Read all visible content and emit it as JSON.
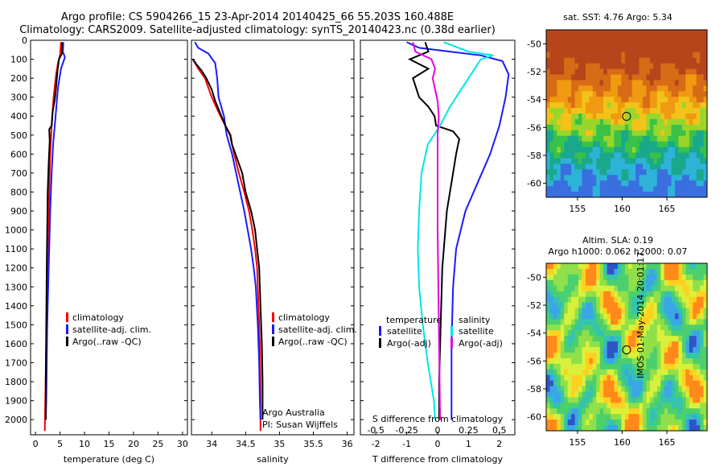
{
  "header": {
    "line1": "Argo profile: CS 5904266_15 23-Apr-2014 20140425_66 55.203S 160.488E",
    "line2": "Climatology: CARS2009. Satellite-adjusted climatology: synTS_20140423.nc (0.38d earlier)"
  },
  "colors": {
    "climatology": "#ff0000",
    "satellite": "#1a1aff",
    "argo": "#000000",
    "satellite_s": "#00e6e6",
    "argo_s": "#e600e6"
  },
  "chart_data": [
    {
      "id": "temperature",
      "type": "line",
      "xlabel": "temperature (deg C)",
      "ylabel": "",
      "xlim": [
        -1,
        31
      ],
      "ylim": [
        2080,
        0
      ],
      "xticks": [
        0,
        5,
        10,
        15,
        20,
        25,
        30
      ],
      "yticks": [
        0,
        100,
        200,
        300,
        400,
        500,
        600,
        700,
        800,
        900,
        1000,
        1100,
        1200,
        1300,
        1400,
        1500,
        1600,
        1700,
        1800,
        1900,
        2000
      ],
      "legend": [
        "climatology",
        "satellite-adj. clim.",
        "Argo(..raw -QC)"
      ],
      "series": [
        {
          "name": "climatology",
          "color": "#ff0000",
          "points": [
            [
              5.2,
              10
            ],
            [
              5.0,
              80
            ],
            [
              4.6,
              120
            ],
            [
              4.2,
              180
            ],
            [
              3.7,
              300
            ],
            [
              3.3,
              450
            ],
            [
              3.0,
              600
            ],
            [
              2.8,
              800
            ],
            [
              2.6,
              1000
            ],
            [
              2.4,
              1300
            ],
            [
              2.2,
              1600
            ],
            [
              2.0,
              1900
            ],
            [
              1.9,
              2060
            ]
          ]
        },
        {
          "name": "satellite-adj. clim.",
          "color": "#1a1aff",
          "points": [
            [
              5.7,
              10
            ],
            [
              5.6,
              60
            ],
            [
              6.0,
              90
            ],
            [
              5.2,
              150
            ],
            [
              4.6,
              250
            ],
            [
              4.1,
              400
            ],
            [
              3.6,
              550
            ],
            [
              3.3,
              700
            ],
            [
              3.0,
              900
            ],
            [
              2.8,
              1100
            ],
            [
              2.6,
              1300
            ],
            [
              2.4,
              1500
            ],
            [
              2.3,
              1700
            ],
            [
              2.2,
              1900
            ],
            [
              2.1,
              2000
            ]
          ]
        },
        {
          "name": "Argo(..raw -QC)",
          "color": "#000000",
          "points": [
            [
              5.4,
              10
            ],
            [
              5.4,
              70
            ],
            [
              4.8,
              100
            ],
            [
              4.5,
              160
            ],
            [
              4.3,
              220
            ],
            [
              4.0,
              300
            ],
            [
              3.5,
              380
            ],
            [
              3.3,
              450
            ],
            [
              2.8,
              470
            ],
            [
              2.9,
              530
            ],
            [
              2.7,
              650
            ],
            [
              2.5,
              800
            ],
            [
              2.4,
              1000
            ],
            [
              2.3,
              1200
            ],
            [
              2.2,
              1500
            ],
            [
              2.1,
              1800
            ],
            [
              2.1,
              2000
            ]
          ]
        }
      ]
    },
    {
      "id": "salinity",
      "type": "line",
      "xlabel": "salinity",
      "ylabel": "",
      "xlim": [
        33.7,
        36.1
      ],
      "ylim": [
        2080,
        0
      ],
      "xticks": [
        34,
        34.5,
        35,
        35.5,
        36
      ],
      "yticks": [
        0,
        100,
        200,
        300,
        400,
        500,
        600,
        700,
        800,
        900,
        1000,
        1100,
        1200,
        1300,
        1400,
        1500,
        1600,
        1700,
        1800,
        1900,
        2000
      ],
      "legend": [
        "climatology",
        "satellite-adj. clim.",
        "Argo(..raw -QC)"
      ],
      "annotations": [
        "Argo Australia",
        "PI: Susan Wijffels"
      ],
      "series": [
        {
          "name": "climatology",
          "color": "#ff0000",
          "points": [
            [
              33.72,
              100
            ],
            [
              33.8,
              150
            ],
            [
              33.9,
              200
            ],
            [
              34.0,
              300
            ],
            [
              34.1,
              380
            ],
            [
              34.2,
              450
            ],
            [
              34.28,
              500
            ],
            [
              34.3,
              550
            ],
            [
              34.33,
              600
            ],
            [
              34.4,
              700
            ],
            [
              34.48,
              800
            ],
            [
              34.55,
              900
            ],
            [
              34.6,
              1000
            ],
            [
              34.64,
              1100
            ],
            [
              34.67,
              1200
            ],
            [
              34.69,
              1400
            ],
            [
              34.71,
              1600
            ],
            [
              34.72,
              1800
            ],
            [
              34.72,
              2060
            ]
          ]
        },
        {
          "name": "satellite-adj. clim.",
          "color": "#1a1aff",
          "points": [
            [
              33.75,
              10
            ],
            [
              33.8,
              40
            ],
            [
              33.95,
              70
            ],
            [
              34.05,
              120
            ],
            [
              34.08,
              200
            ],
            [
              34.1,
              300
            ],
            [
              34.18,
              400
            ],
            [
              34.22,
              500
            ],
            [
              34.3,
              600
            ],
            [
              34.36,
              700
            ],
            [
              34.42,
              800
            ],
            [
              34.48,
              900
            ],
            [
              34.53,
              1000
            ],
            [
              34.58,
              1100
            ],
            [
              34.62,
              1200
            ],
            [
              34.65,
              1300
            ],
            [
              34.68,
              1500
            ],
            [
              34.7,
              1700
            ],
            [
              34.71,
              1900
            ],
            [
              34.72,
              2000
            ]
          ]
        },
        {
          "name": "Argo(..raw -QC)",
          "color": "#000000",
          "points": [
            [
              33.72,
              100
            ],
            [
              33.78,
              130
            ],
            [
              33.85,
              160
            ],
            [
              33.92,
              200
            ],
            [
              34.0,
              260
            ],
            [
              34.05,
              320
            ],
            [
              34.12,
              380
            ],
            [
              34.2,
              450
            ],
            [
              34.27,
              500
            ],
            [
              34.3,
              550
            ],
            [
              34.35,
              600
            ],
            [
              34.4,
              650
            ],
            [
              34.45,
              700
            ],
            [
              34.5,
              800
            ],
            [
              34.58,
              900
            ],
            [
              34.64,
              1000
            ],
            [
              34.67,
              1100
            ],
            [
              34.7,
              1200
            ],
            [
              34.72,
              1400
            ],
            [
              34.74,
              1600
            ],
            [
              34.75,
              1800
            ],
            [
              34.75,
              2000
            ]
          ]
        }
      ]
    },
    {
      "id": "difference",
      "type": "line",
      "xlabel": "T difference from climatology",
      "x2label": "S difference from climatology",
      "xlim": [
        -2.5,
        2.5
      ],
      "x2lim": [
        -0.625,
        0.625
      ],
      "ylim": [
        2080,
        0
      ],
      "xticks": [
        -2,
        -1,
        0,
        1,
        2
      ],
      "x2ticks": [
        -0.5,
        -0.25,
        0,
        0.25,
        0.5
      ],
      "x2ticklabels": [
        "-0.5",
        "-0.25",
        "0",
        "0.25",
        "0.5"
      ],
      "yticks": [
        0,
        100,
        200,
        300,
        400,
        500,
        600,
        700,
        800,
        900,
        1000,
        1100,
        1200,
        1300,
        1400,
        1500,
        1600,
        1700,
        1800,
        1900,
        2000
      ],
      "legend_heads": [
        "temperature",
        "salinity"
      ],
      "legend": [
        "satellite",
        "Argo(-adj)",
        "satellite",
        "Argo(-adj)"
      ],
      "series": [
        {
          "name": "T satellite",
          "axis": "T",
          "color": "#1a1aff",
          "points": [
            [
              -1.0,
              10
            ],
            [
              -0.6,
              40
            ],
            [
              0.4,
              60
            ],
            [
              1.4,
              80
            ],
            [
              2.1,
              110
            ],
            [
              2.3,
              180
            ],
            [
              2.2,
              300
            ],
            [
              2.0,
              450
            ],
            [
              1.7,
              600
            ],
            [
              1.3,
              750
            ],
            [
              0.9,
              900
            ],
            [
              0.6,
              1100
            ],
            [
              0.5,
              1300
            ],
            [
              0.45,
              1600
            ],
            [
              0.45,
              1900
            ],
            [
              0.45,
              2000
            ]
          ]
        },
        {
          "name": "T Argo(-adj)",
          "axis": "T",
          "color": "#000000",
          "points": [
            [
              -0.4,
              10
            ],
            [
              -0.3,
              60
            ],
            [
              -0.9,
              100
            ],
            [
              -0.3,
              150
            ],
            [
              -0.8,
              200
            ],
            [
              -0.6,
              300
            ],
            [
              -0.3,
              350
            ],
            [
              -0.1,
              400
            ],
            [
              -0.05,
              450
            ],
            [
              0.5,
              480
            ],
            [
              0.7,
              520
            ],
            [
              0.6,
              600
            ],
            [
              0.5,
              700
            ],
            [
              0.3,
              900
            ],
            [
              0.15,
              1200
            ],
            [
              0.1,
              1500
            ],
            [
              0.05,
              1800
            ],
            [
              0.05,
              2000
            ]
          ]
        },
        {
          "name": "S satellite",
          "axis": "S",
          "color": "#00e6e6",
          "points": [
            [
              0.05,
              10
            ],
            [
              0.25,
              60
            ],
            [
              0.45,
              80
            ],
            [
              0.35,
              100
            ],
            [
              0.3,
              150
            ],
            [
              0.2,
              250
            ],
            [
              0.1,
              350
            ],
            [
              0.02,
              450
            ],
            [
              -0.08,
              550
            ],
            [
              -0.13,
              700
            ],
            [
              -0.15,
              900
            ],
            [
              -0.16,
              1100
            ],
            [
              -0.15,
              1300
            ],
            [
              -0.12,
              1500
            ],
            [
              -0.08,
              1700
            ],
            [
              -0.03,
              1900
            ],
            [
              -0.02,
              2000
            ]
          ]
        },
        {
          "name": "S Argo(-adj)",
          "axis": "S",
          "color": "#e600e6",
          "points": [
            [
              -0.2,
              10
            ],
            [
              -0.18,
              60
            ],
            [
              -0.05,
              100
            ],
            [
              -0.02,
              150
            ],
            [
              -0.04,
              200
            ],
            [
              -0.02,
              260
            ],
            [
              0.0,
              320
            ],
            [
              0.01,
              400
            ],
            [
              0.0,
              500
            ],
            [
              0.0,
              700
            ],
            [
              0.0,
              1000
            ],
            [
              0.01,
              1500
            ],
            [
              0.02,
              2000
            ]
          ]
        }
      ]
    },
    {
      "id": "sst_map",
      "type": "heatmap",
      "title": "sat. SST: 4.76 Argo: 5.34",
      "xlim": [
        151.5,
        169.5
      ],
      "ylim": [
        -61,
        -49
      ],
      "xticks": [
        155,
        160,
        165
      ],
      "yticks": [
        -50,
        -52,
        -54,
        -56,
        -58,
        -60
      ],
      "marker": {
        "lon": 160.488,
        "lat": -55.203
      }
    },
    {
      "id": "sla_map",
      "type": "heatmap",
      "title": "Altim. SLA: 0.19",
      "subtitle": "Argo h1000: 0.062 h2000: 0.07",
      "xlim": [
        151.5,
        169.5
      ],
      "ylim": [
        -61,
        -49
      ],
      "xticks": [
        155,
        160,
        165
      ],
      "yticks": [
        -50,
        -52,
        -54,
        -56,
        -58,
        -60
      ],
      "marker": {
        "lon": 160.488,
        "lat": -55.203
      }
    }
  ],
  "footer": {
    "stamp": "IMOS 01-May-2014 20:01:17"
  }
}
